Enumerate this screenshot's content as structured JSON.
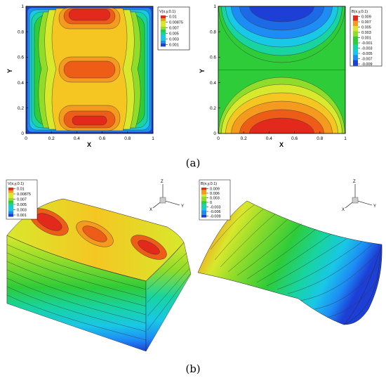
{
  "figure": {
    "caption_a": "(a)",
    "caption_b": "(b)"
  },
  "chart_data": [
    {
      "type": "heatmap",
      "panel": "a-left",
      "title": "",
      "xlabel": "X",
      "ylabel": "Y",
      "xlim": [
        0,
        1
      ],
      "ylim": [
        0,
        1
      ],
      "xticks": [
        "0",
        "0.2",
        "0.4",
        "0.6",
        "0.8",
        "1"
      ],
      "yticks": [
        "0",
        "0.2",
        "0.4",
        "0.6",
        "0.8",
        "1"
      ],
      "legend_title": "V(x,y,0.1)",
      "legend_entries": [
        "0.01",
        "0.00875",
        "0.007",
        "0.005",
        "0.003",
        "0.001"
      ],
      "levels": [
        0.001,
        0.002,
        0.003,
        0.004,
        0.005,
        0.006,
        0.007,
        0.008,
        0.00875,
        0.0095,
        0.01
      ],
      "colormap": [
        "#1d3fd6",
        "#1d8cf5",
        "#19c7e6",
        "#17d4a1",
        "#2ecc38",
        "#8fdc2a",
        "#d8e82c",
        "#f5c622",
        "#f49a1e",
        "#ee5d18",
        "#e3281c"
      ],
      "legend_placement": "top-right"
    },
    {
      "type": "heatmap",
      "panel": "a-right",
      "title": "",
      "xlabel": "X",
      "ylabel": "Y",
      "xlim": [
        0,
        1
      ],
      "ylim": [
        0,
        1
      ],
      "xticks": [
        "0",
        "0.2",
        "0.4",
        "0.6",
        "0.8",
        "1"
      ],
      "yticks": [
        "0",
        "0.2",
        "0.4",
        "0.6",
        "0.8",
        "1"
      ],
      "legend_title": "B(x,y,0.1)",
      "legend_entries": [
        "0.009",
        "0.007",
        "0.005",
        "0.003",
        "0.001",
        "-0.001",
        "-0.003",
        "-0.005",
        "-0.007",
        "-0.009"
      ],
      "levels": [
        -0.009,
        -0.007,
        -0.005,
        -0.003,
        -0.001,
        0.001,
        0.003,
        0.005,
        0.007,
        0.009
      ],
      "colormap": [
        "#1d3fd6",
        "#1d8cf5",
        "#19c7e6",
        "#17d4a1",
        "#2ecc38",
        "#8fdc2a",
        "#d8e82c",
        "#f5c622",
        "#f49a1e",
        "#e3281c"
      ],
      "legend_placement": "top-right"
    },
    {
      "type": "surface",
      "panel": "b-left",
      "legend_title": "V(x,y,0.1)",
      "legend_entries": [
        "0.01",
        "0.00875",
        "0.007",
        "0.005",
        "0.003",
        "0.001"
      ],
      "axes_triad": [
        "Z",
        "Y",
        "X"
      ],
      "legend_placement": "top-left"
    },
    {
      "type": "surface",
      "panel": "b-right",
      "legend_title": "B(x,y,0.1)",
      "legend_entries": [
        "0.009",
        "0.006",
        "0.003",
        "0",
        "-0.003",
        "-0.006",
        "-0.009"
      ],
      "axes_triad": [
        "Z",
        "Y",
        "X"
      ],
      "legend_placement": "top-left"
    }
  ]
}
